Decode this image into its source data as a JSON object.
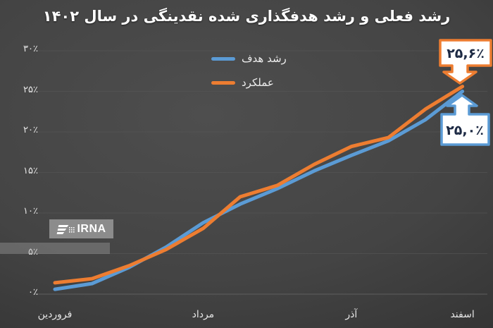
{
  "title": "رشد فعلی و رشد هدفگذاری شده نقدینگی در سال ۱۴۰۲",
  "legend": {
    "target_label": "رشد هدف",
    "actual_label": "عملکرد"
  },
  "annotations": {
    "actual_endpoint_value": "۲۵,۶٪",
    "target_endpoint_value": "۲۵,۰٪"
  },
  "watermark": {
    "agency": "IRNA"
  },
  "colors": {
    "target_line": "#5b9bd5",
    "actual_line": "#ed7d31",
    "callout_text": "#1d2a44",
    "callout_fill": "#ffffff",
    "gridline": "#565656",
    "axis_text": "#e6e6e6",
    "title_text": "#ffffff"
  },
  "chart_data": {
    "type": "line",
    "n_points": 12,
    "x_tick_indices": [
      0,
      4,
      8,
      11
    ],
    "x_tick_labels": [
      "فروردین",
      "مرداد",
      "آذر",
      "اسفند"
    ],
    "series": [
      {
        "id": "target-line",
        "name": "رشد هدف",
        "color": "#5b9bd5",
        "values": [
          0.6,
          1.3,
          3.3,
          5.8,
          8.8,
          11.1,
          13.0,
          15.2,
          17.1,
          18.9,
          21.5,
          25.0
        ]
      },
      {
        "id": "actual-line",
        "name": "عملکرد",
        "color": "#ed7d31",
        "values": [
          1.4,
          1.9,
          3.5,
          5.5,
          8.1,
          12.0,
          13.4,
          16.0,
          18.2,
          19.3,
          22.8,
          25.6
        ]
      }
    ],
    "ylim": [
      0,
      30
    ],
    "y_tick_step": 5,
    "y_tick_labels": [
      "۰٪",
      "۵٪",
      "۱۰٪",
      "۱۵٪",
      "۲۰٪",
      "۲۵٪",
      "۳۰٪"
    ],
    "grid": true,
    "legend_position": "top-center",
    "endpoint_actual": 25.6,
    "endpoint_target": 25.0
  }
}
